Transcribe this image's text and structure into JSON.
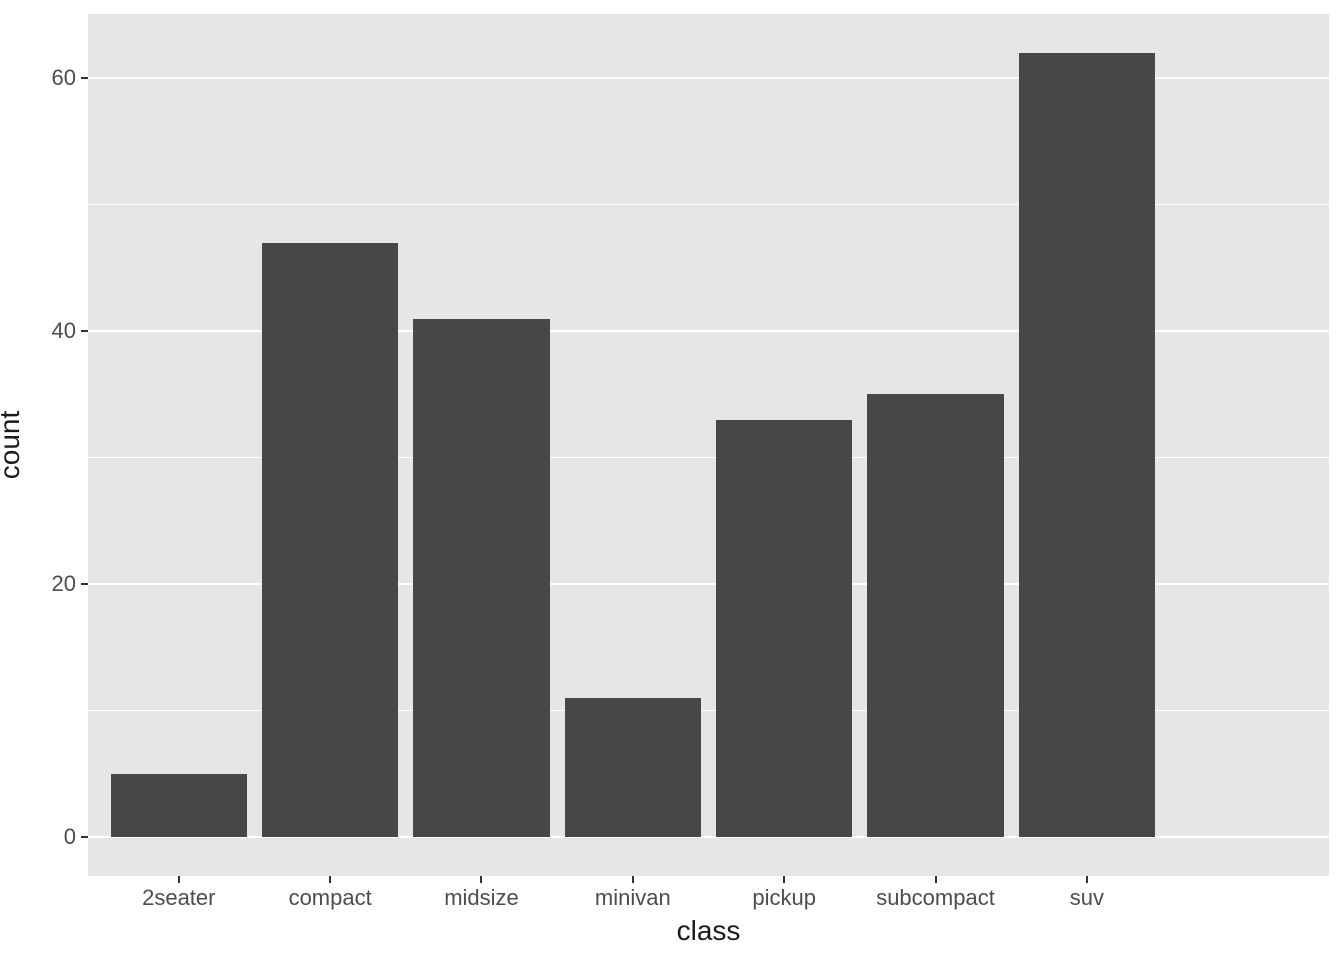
{
  "chart_data": {
    "type": "bar",
    "title": "",
    "categories": [
      "2seater",
      "compact",
      "midsize",
      "minivan",
      "pickup",
      "subcompact",
      "suv"
    ],
    "values": [
      5,
      47,
      41,
      11,
      33,
      35,
      62
    ],
    "xlabel": "class",
    "ylabel": "count",
    "yticks": [
      0,
      20,
      40,
      60
    ],
    "ytick_labels": [
      "0",
      "20",
      "40",
      "60"
    ],
    "yminor": [
      10,
      30,
      50
    ],
    "ylim": [
      -3.1,
      65.1
    ],
    "grid": "on",
    "legend": "none",
    "colors": {
      "bar_fill": "#474747",
      "panel_background": "#E6E6E6",
      "gridline": "#FFFFFF",
      "tick_mark": "#333333",
      "tick_label": "#4D4D4D",
      "axis_title": "#1A1A1A",
      "figure_background": "#FFFFFF"
    }
  }
}
